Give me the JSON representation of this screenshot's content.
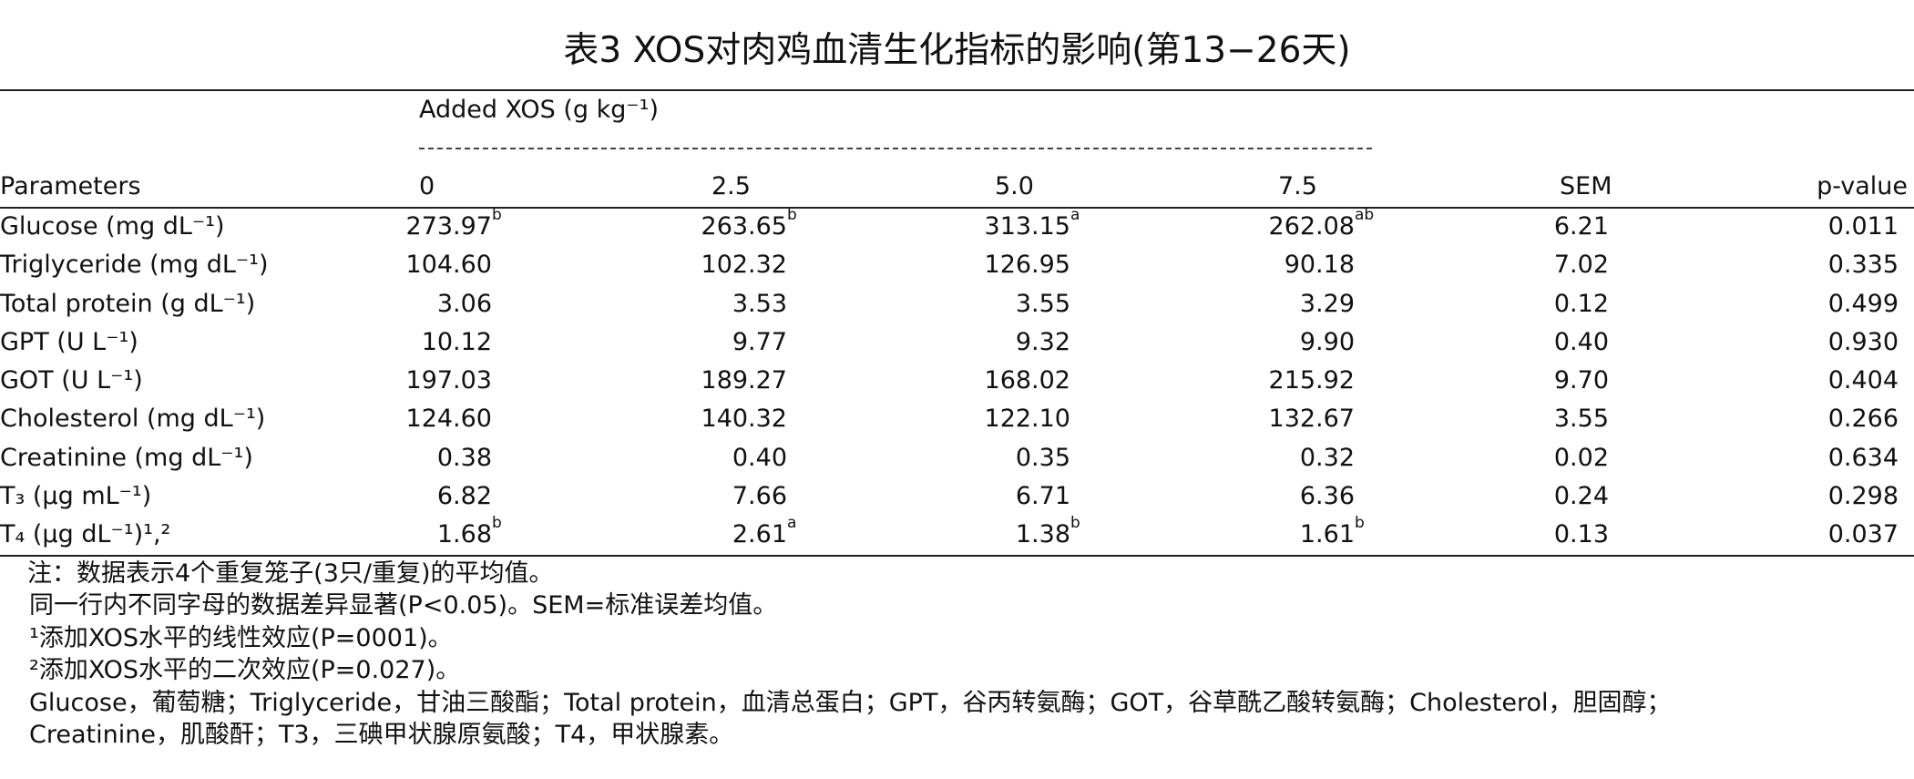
{
  "header": {
    "title": "表3 XOS对肉鸡血清生化指标的影响(第13−26天)",
    "group": "Added XOS (g kg⁻¹)"
  },
  "table": {
    "columns": [
      "Parameters",
      "0",
      "2.5",
      "5.0",
      "7.5",
      "SEM",
      "p-value"
    ],
    "rows": [
      [
        "Glucose (mg dL⁻¹)",
        {
          "v": "273.97",
          "sup": "b"
        },
        {
          "v": "263.65",
          "sup": "b"
        },
        {
          "v": "313.15",
          "sup": "a"
        },
        {
          "v": "262.08",
          "sup": "ab"
        },
        "6.21",
        "0.011"
      ],
      [
        "Triglyceride (mg dL⁻¹)",
        {
          "v": "104.60"
        },
        {
          "v": "102.32"
        },
        {
          "v": "126.95"
        },
        {
          "v": "90.18"
        },
        "7.02",
        "0.335"
      ],
      [
        "Total protein (g dL⁻¹)",
        {
          "v": "3.06"
        },
        {
          "v": "3.53"
        },
        {
          "v": "3.55"
        },
        {
          "v": "3.29"
        },
        "0.12",
        "0.499"
      ],
      [
        "GPT (U L⁻¹)",
        {
          "v": "10.12"
        },
        {
          "v": "9.77"
        },
        {
          "v": "9.32"
        },
        {
          "v": "9.90"
        },
        "0.40",
        "0.930"
      ],
      [
        "GOT (U L⁻¹)",
        {
          "v": "197.03"
        },
        {
          "v": "189.27"
        },
        {
          "v": "168.02"
        },
        {
          "v": "215.92"
        },
        "9.70",
        "0.404"
      ],
      [
        "Cholesterol (mg dL⁻¹)",
        {
          "v": "124.60"
        },
        {
          "v": "140.32"
        },
        {
          "v": "122.10"
        },
        {
          "v": "132.67"
        },
        "3.55",
        "0.266"
      ],
      [
        "Creatinine (mg dL⁻¹)",
        {
          "v": "0.38"
        },
        {
          "v": "0.40"
        },
        {
          "v": "0.35"
        },
        {
          "v": "0.32"
        },
        "0.02",
        "0.634"
      ],
      [
        "T₃ (μg mL⁻¹)",
        {
          "v": "6.82"
        },
        {
          "v": "7.66"
        },
        {
          "v": "6.71"
        },
        {
          "v": "6.36"
        },
        "0.24",
        "0.298"
      ],
      [
        "T₄ (μg dL⁻¹)¹,²",
        {
          "v": "1.68",
          "sup": "b"
        },
        {
          "v": "2.61",
          "sup": "a"
        },
        {
          "v": "1.38",
          "sup": "b"
        },
        {
          "v": "1.61",
          "sup": "b"
        },
        "0.13",
        "0.037"
      ]
    ]
  },
  "notes": [
    "注：数据表示4个重复笼子(3只/重复)的平均值。",
    "同一行内不同字母的数据差异显著(P<0.05)。SEM=标准误差均值。",
    "¹添加XOS水平的线性效应(P=0001)。",
    "²添加XOS水平的二次效应(P=0.027)。",
    "Glucose，葡萄糖；Triglyceride，甘油三酸酯；Total protein，血清总蛋白；GPT，谷丙转氨酶；GOT，谷草酰乙酸转氨酶；Cholesterol，胆固醇；",
    "Creatinine，肌酸酐；T3，三碘甲状腺原氨酸；T4，甲状腺素。"
  ]
}
